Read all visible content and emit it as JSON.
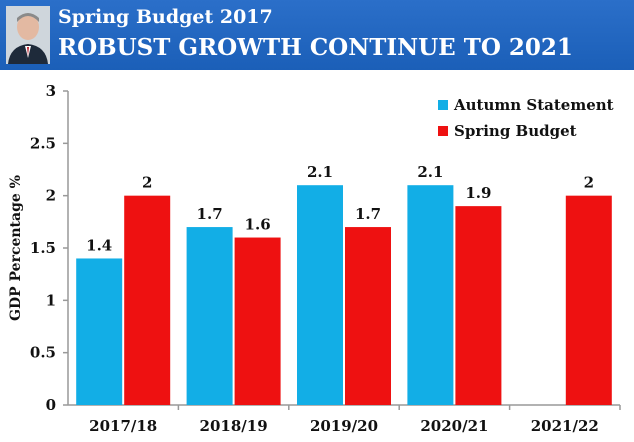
{
  "header": {
    "line1": "Spring Budget 2017",
    "line2": "ROBUST GROWTH CONTINUE TO 2021",
    "background": "#1f63bd"
  },
  "chart_data": {
    "type": "bar",
    "title": "Spring Budget 2017 ROBUST GROWTH CONTINUE TO 2021",
    "xlabel": "",
    "ylabel": "GDP Percentage %",
    "ylim": [
      0,
      3
    ],
    "yticks": [
      "0",
      "0.5",
      "1",
      "1.5",
      "2",
      "2.5",
      "3"
    ],
    "categories": [
      "2017/18",
      "2018/19",
      "2019/20",
      "2020/21",
      "2021/22"
    ],
    "legend_position": "top-right",
    "series": [
      {
        "name": "Autumn Statement",
        "color": "#12aee6",
        "values": [
          1.4,
          1.7,
          2.1,
          2.1,
          null
        ],
        "labels": [
          "1.4",
          "1.7",
          "2.1",
          "2.1",
          ""
        ]
      },
      {
        "name": "Spring Budget",
        "color": "#ee1111",
        "values": [
          2,
          1.6,
          1.7,
          1.9,
          2
        ],
        "labels": [
          "2",
          "1.6",
          "1.7",
          "1.9",
          "2"
        ]
      }
    ]
  }
}
